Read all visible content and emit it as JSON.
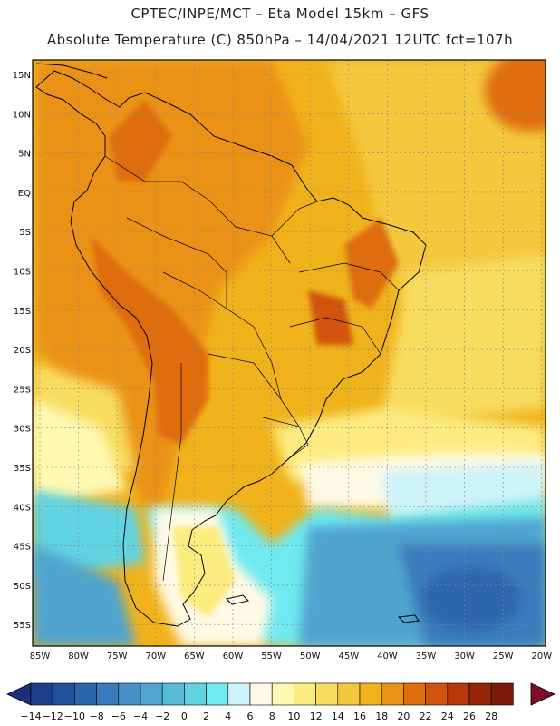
{
  "header": {
    "line1": "CPTEC/INPE/MCT –   Eta Model 15km – GFS",
    "line2": "Absolute Temperature (C) 850hPa – 14/04/2021 12UTC fct=107h"
  },
  "axes": {
    "lat_labels": [
      "15N",
      "10N",
      "5N",
      "EQ",
      "5S",
      "10S",
      "15S",
      "20S",
      "25S",
      "30S",
      "35S",
      "40S",
      "45S",
      "50S",
      "55S"
    ],
    "lon_labels": [
      "85W",
      "80W",
      "75W",
      "70W",
      "65W",
      "60W",
      "55W",
      "50W",
      "45W",
      "40W",
      "35W",
      "30W",
      "25W",
      "20W"
    ]
  },
  "colorbar": {
    "tick_labels": [
      "-14",
      "-12",
      "-10",
      "-8",
      "-6",
      "-4",
      "-2",
      "0",
      "2",
      "4",
      "6",
      "8",
      "10",
      "12",
      "14",
      "16",
      "18",
      "20",
      "22",
      "24",
      "26",
      "28"
    ],
    "colors": [
      "#1d3f8a",
      "#22509a",
      "#2d66ad",
      "#3a7bbd",
      "#4790c7",
      "#50a4cf",
      "#56bad8",
      "#5fd3e2",
      "#6eeaf0",
      "#cdf3f8",
      "#fff9e6",
      "#fff8b0",
      "#fcec80",
      "#f8dc5e",
      "#f4c83c",
      "#f0b21a",
      "#eb9216",
      "#e06d10",
      "#d2530c",
      "#b8380a",
      "#962508",
      "#7a1b0a"
    ],
    "low_end_color": "#1b2f7a",
    "high_end_color": "#7d0f26"
  },
  "map": {
    "ocean_color": "#f0b21a",
    "land_color": "#eb9c1a"
  }
}
